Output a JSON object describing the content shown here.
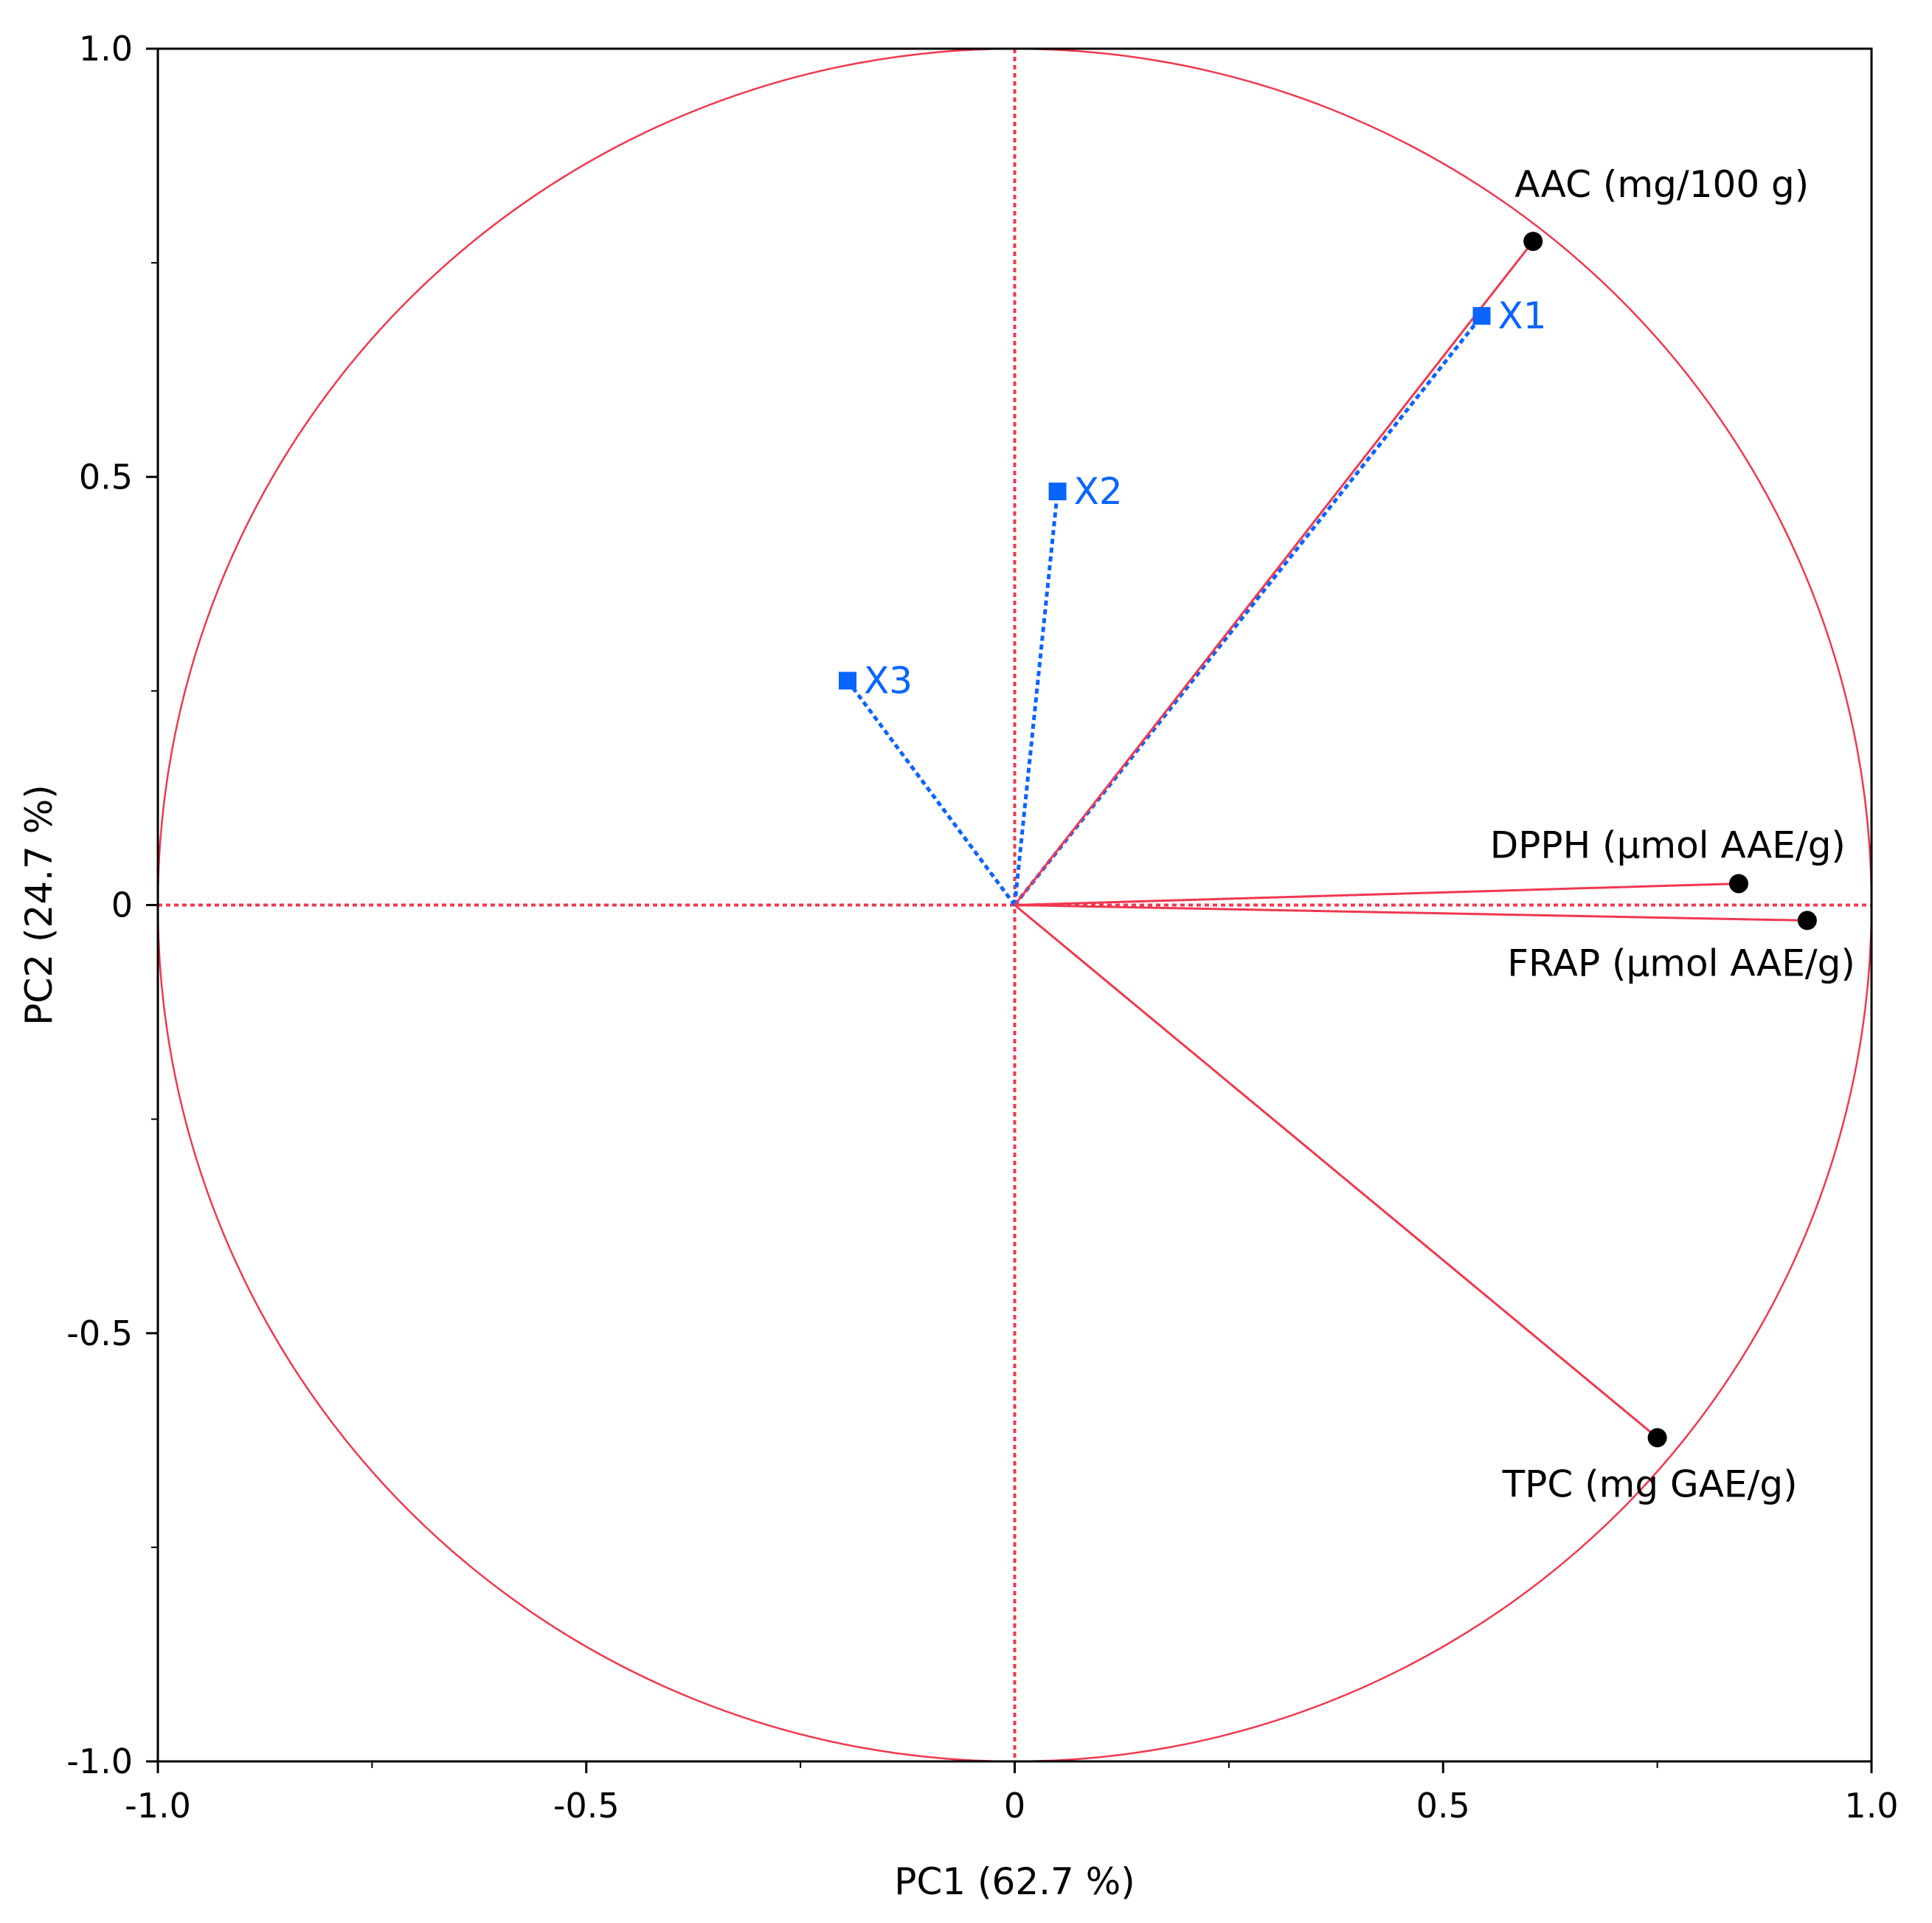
{
  "chart_data": {
    "type": "scatter",
    "subtype": "pca-loading-plot",
    "xlabel": "PC1  (62.7 %)",
    "ylabel": "PC2  (24.7 %)",
    "xlim": [
      -1.0,
      1.0
    ],
    "ylim": [
      -1.0,
      1.0
    ],
    "x_ticks": [
      "-1.0",
      "-0.5",
      "0",
      "0.5",
      "1.0"
    ],
    "y_ticks": [
      "1.0",
      "0.5",
      "0",
      "-0.5",
      "-1.0"
    ],
    "x_tick_values": [
      -1.0,
      -0.5,
      0,
      0.5,
      1.0
    ],
    "y_tick_values": [
      1.0,
      0.5,
      0,
      -0.5,
      -1.0
    ],
    "minor_ticks": [
      -0.75,
      -0.25,
      0.25,
      0.75
    ],
    "unit_circle": true,
    "reference_lines": [
      0,
      0
    ],
    "colors": {
      "responses": "#f0384f",
      "factors": "#0a64ff",
      "frame": "#000000"
    },
    "responses": [
      {
        "label": "AAC (mg/100 g)",
        "x": 0.605,
        "y": 0.775
      },
      {
        "label": "DPPH (µmol AAE/g)",
        "x": 0.845,
        "y": 0.025
      },
      {
        "label": "FRAP (µmol AAE/g)",
        "x": 0.925,
        "y": -0.018
      },
      {
        "label": "TPC (mg GAE/g)",
        "x": 0.75,
        "y": -0.622
      }
    ],
    "factors": [
      {
        "label": "X1",
        "x": 0.545,
        "y": 0.688
      },
      {
        "label": "X2",
        "x": 0.05,
        "y": 0.483
      },
      {
        "label": "X3",
        "x": -0.195,
        "y": 0.262
      }
    ]
  }
}
